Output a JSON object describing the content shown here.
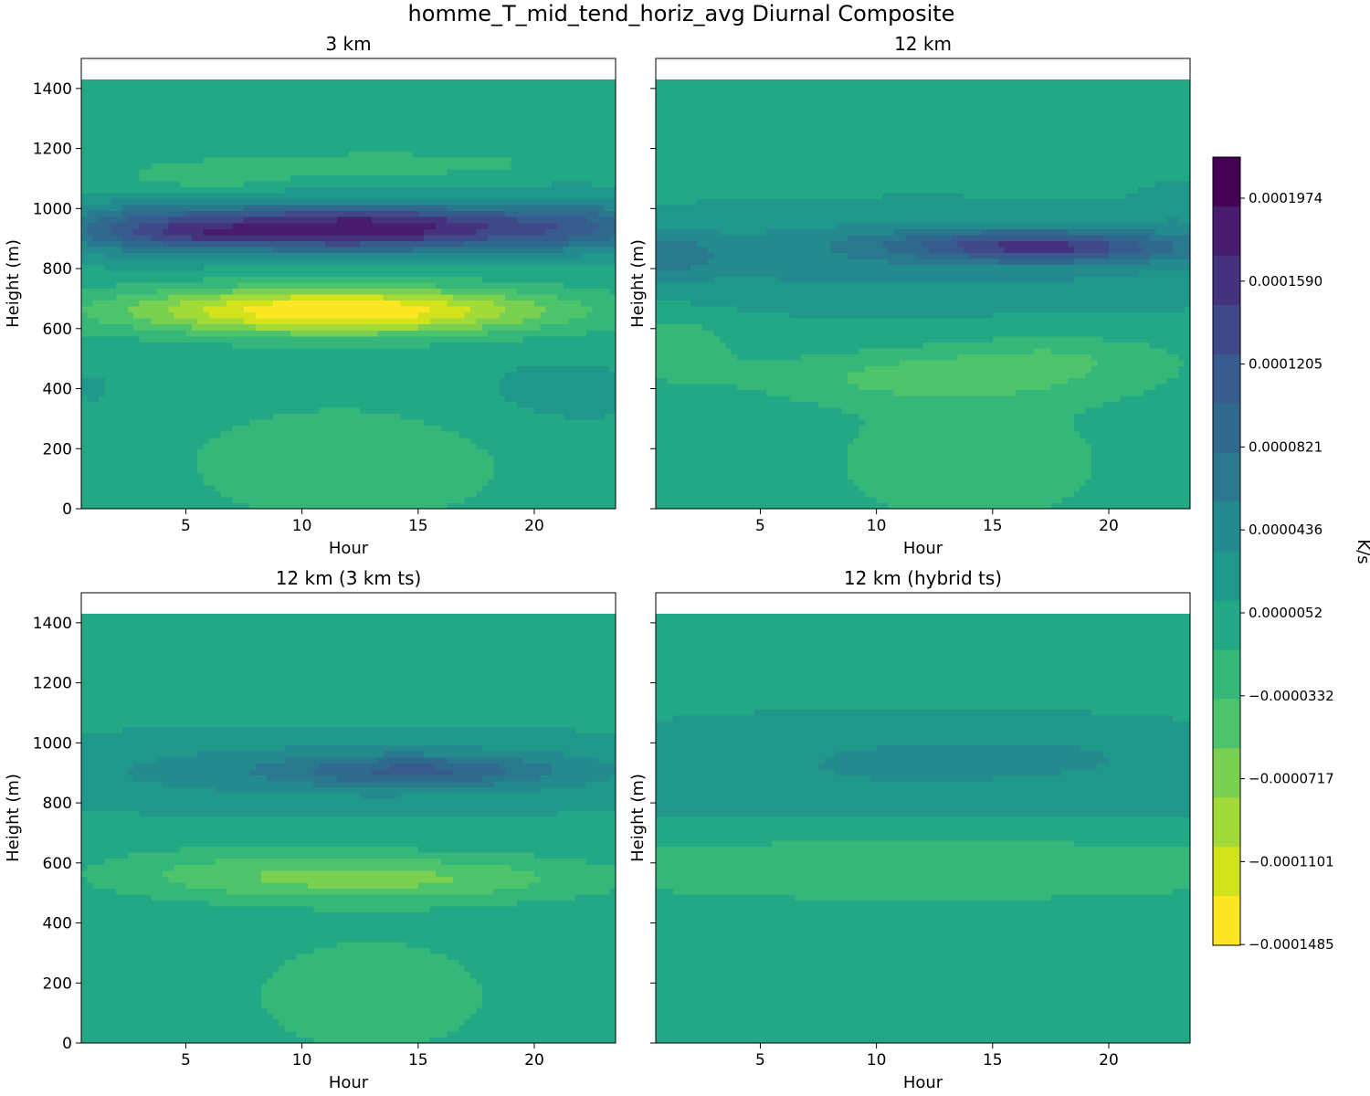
{
  "figure": {
    "suptitle": "homme_T_mid_tend_horiz_avg Diurnal Composite"
  },
  "colorbar": {
    "label": "K/s",
    "tick_labels": [
      "0.0001974",
      "0.0001590",
      "0.0001205",
      "0.0000821",
      "0.0000436",
      "0.0000052",
      "−0.0000332",
      "−0.0000717",
      "−0.0001101",
      "−0.0001485"
    ],
    "levels_top_to_bottom": [
      "#440154",
      "#471b6d",
      "#45327f",
      "#3f4889",
      "#375b8d",
      "#30698e",
      "#2a788e",
      "#238a8d",
      "#1f988b",
      "#22a884",
      "#35b779",
      "#4dc36b",
      "#7ad151",
      "#a2da37",
      "#d2e21b",
      "#fde725"
    ],
    "range": [
      -0.0001485,
      0.000221
    ]
  },
  "chart_data": [
    {
      "type": "heatmap",
      "title": "3 km",
      "xlabel": "Hour",
      "ylabel": "Height (m)",
      "xlim": [
        0.5,
        23.5
      ],
      "ylim": [
        0,
        1500
      ],
      "x_ticks": [
        5,
        10,
        15,
        20
      ],
      "y_ticks": [
        0,
        200,
        400,
        600,
        800,
        1000,
        1200,
        1400
      ],
      "y_data_top": 1430,
      "background_value": 5e-06,
      "features": [
        {
          "hour": 12,
          "height": 935,
          "hour_width": 7.2,
          "height_width": 55,
          "value": 0.0001958
        },
        {
          "hour": 6,
          "height": 915,
          "hour_width": 2.2,
          "height_width": 25,
          "value": 3e-05
        },
        {
          "hour": 14.5,
          "height": 965,
          "hour_width": 3,
          "height_width": 20,
          "value": 1e-05
        },
        {
          "hour": 11.5,
          "height": 660,
          "hour_width": 6.5,
          "height_width": 55,
          "value": -0.0001525
        },
        {
          "hour": 3,
          "height": 930,
          "hour_width": 2.5,
          "height_width": 70,
          "value": 4e-05
        },
        {
          "hour": 22,
          "height": 950,
          "hour_width": 2.5,
          "height_width": 70,
          "value": 4.5e-05
        },
        {
          "hour": 6,
          "height": 1110,
          "hour_width": 2.5,
          "height_width": 30,
          "value": -3e-05
        },
        {
          "hour": 13.5,
          "height": 1150,
          "hour_width": 4.5,
          "height_width": 25,
          "value": -3e-05
        },
        {
          "hour": 12,
          "height": 150,
          "hour_width": 5,
          "height_width": 140,
          "value": -3e-05
        },
        {
          "hour": 21,
          "height": 380,
          "hour_width": 3.5,
          "height_width": 100,
          "value": 2e-05
        },
        {
          "hour": 1,
          "height": 400,
          "hour_width": 1.3,
          "height_width": 80,
          "value": 1.5e-05
        }
      ]
    },
    {
      "type": "heatmap",
      "title": "12 km",
      "xlabel": "Hour",
      "ylabel": "Height (m)",
      "xlim": [
        0.5,
        23.5
      ],
      "ylim": [
        0,
        1500
      ],
      "x_ticks": [
        5,
        10,
        15,
        20
      ],
      "y_ticks": [
        0,
        200,
        400,
        600,
        800,
        1000,
        1200,
        1400
      ],
      "y_data_top": 1430,
      "background_value": 5e-06,
      "features": [
        {
          "hour": 12,
          "height": 840,
          "hour_width": 12,
          "height_width": 110,
          "value": 5e-05
        },
        {
          "hour": 16.5,
          "height": 885,
          "hour_width": 4.5,
          "height_width": 35,
          "value": 9e-05
        },
        {
          "hour": 18,
          "height": 860,
          "hour_width": 3.5,
          "height_width": 30,
          "value": 5e-05
        },
        {
          "hour": 13,
          "height": 440,
          "hour_width": 6,
          "height_width": 60,
          "value": -4e-05
        },
        {
          "hour": 18,
          "height": 520,
          "hour_width": 3.5,
          "height_width": 45,
          "value": -2e-05
        },
        {
          "hour": 1.5,
          "height": 540,
          "hour_width": 1.5,
          "height_width": 70,
          "value": -3e-05
        },
        {
          "hour": 14,
          "height": 160,
          "hour_width": 4.5,
          "height_width": 170,
          "value": -2.5e-05
        },
        {
          "hour": 1,
          "height": 850,
          "hour_width": 1.5,
          "height_width": 50,
          "value": 5e-05
        },
        {
          "hour": 23,
          "height": 1000,
          "hour_width": 1.2,
          "height_width": 70,
          "value": 2e-05
        }
      ]
    },
    {
      "type": "heatmap",
      "title": "12 km (3 km ts)",
      "xlabel": "Hour",
      "ylabel": "Height (m)",
      "xlim": [
        0.5,
        23.5
      ],
      "ylim": [
        0,
        1500
      ],
      "x_ticks": [
        5,
        10,
        15,
        20
      ],
      "y_ticks": [
        0,
        200,
        400,
        600,
        800,
        1000,
        1200,
        1400
      ],
      "y_data_top": 1430,
      "background_value": 5e-06,
      "features": [
        {
          "hour": 12,
          "height": 905,
          "hour_width": 11,
          "height_width": 85,
          "value": 5e-05
        },
        {
          "hour": 15,
          "height": 910,
          "hour_width": 4,
          "height_width": 35,
          "value": 7e-05
        },
        {
          "hour": 14,
          "height": 550,
          "hour_width": 6,
          "height_width": 55,
          "value": -6e-05
        },
        {
          "hour": 6,
          "height": 570,
          "hour_width": 4,
          "height_width": 60,
          "value": -2e-05
        },
        {
          "hour": 13,
          "height": 160,
          "hour_width": 4,
          "height_width": 150,
          "value": -2.5e-05
        }
      ]
    },
    {
      "type": "heatmap",
      "title": "12 km (hybrid ts)",
      "xlabel": "Hour",
      "ylabel": "Height (m)",
      "xlim": [
        0.5,
        23.5
      ],
      "ylim": [
        0,
        1500
      ],
      "x_ticks": [
        5,
        10,
        15,
        20
      ],
      "y_ticks": [
        0,
        200,
        400,
        600,
        800,
        1000,
        1200,
        1400
      ],
      "y_data_top": 1430,
      "background_value": 5e-06,
      "features": [
        {
          "hour": 12,
          "height": 900,
          "hour_width": 13,
          "height_width": 140,
          "value": 3.2e-05
        },
        {
          "hour": 12,
          "height": 945,
          "hour_width": 3.5,
          "height_width": 45,
          "value": 2e-05
        },
        {
          "hour": 17.5,
          "height": 955,
          "hour_width": 2.5,
          "height_width": 35,
          "value": 2e-05
        },
        {
          "hour": 12,
          "height": 590,
          "hour_width": 13,
          "height_width": 85,
          "value": -3e-05
        }
      ]
    }
  ]
}
